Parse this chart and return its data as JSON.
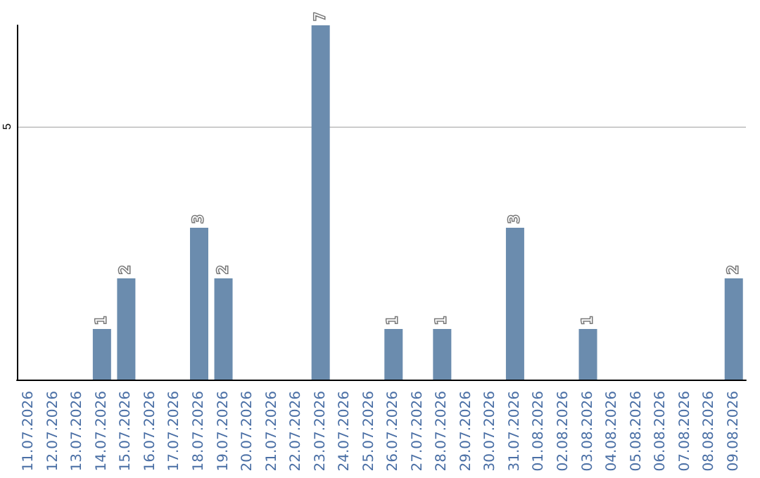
{
  "chart_data": {
    "type": "bar",
    "categories": [
      "11.07.2026",
      "12.07.2026",
      "13.07.2026",
      "14.07.2026",
      "15.07.2026",
      "16.07.2026",
      "17.07.2026",
      "18.07.2026",
      "19.07.2026",
      "20.07.2026",
      "21.07.2026",
      "22.07.2026",
      "23.07.2026",
      "24.07.2026",
      "25.07.2026",
      "26.07.2026",
      "27.07.2026",
      "28.07.2026",
      "29.07.2026",
      "30.07.2026",
      "31.07.2026",
      "01.08.2026",
      "02.08.2026",
      "03.08.2026",
      "04.08.2026",
      "05.08.2026",
      "06.08.2026",
      "07.08.2026",
      "08.08.2026",
      "09.08.2026"
    ],
    "values": [
      0,
      0,
      0,
      1,
      2,
      0,
      0,
      3,
      2,
      0,
      0,
      0,
      7,
      0,
      0,
      1,
      0,
      1,
      0,
      0,
      3,
      0,
      0,
      1,
      0,
      0,
      0,
      0,
      0,
      2
    ],
    "value_labels": [
      null,
      null,
      null,
      "1",
      "2",
      null,
      null,
      "3",
      "2",
      null,
      null,
      null,
      "7",
      null,
      null,
      "1",
      null,
      "1",
      null,
      null,
      "3",
      null,
      null,
      "1",
      null,
      null,
      null,
      null,
      null,
      "2"
    ],
    "color": "#6b8cae",
    "ylim": [
      0,
      7
    ],
    "yticks": [
      5
    ],
    "grid": "y"
  }
}
